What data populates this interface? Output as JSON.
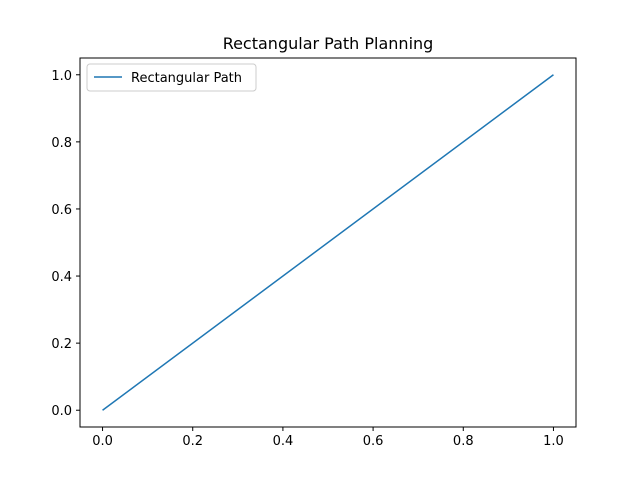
{
  "chart_data": {
    "type": "line",
    "title": "Rectangular Path Planning",
    "xlabel": "",
    "ylabel": "",
    "xlim": [
      -0.05,
      1.05
    ],
    "ylim": [
      -0.05,
      1.05
    ],
    "x_ticks": [
      "0.0",
      "0.2",
      "0.4",
      "0.6",
      "0.8",
      "1.0"
    ],
    "y_ticks": [
      "0.0",
      "0.2",
      "0.4",
      "0.6",
      "0.8",
      "1.0"
    ],
    "grid": false,
    "legend_position": "upper-left",
    "series": [
      {
        "name": "Rectangular Path",
        "color": "#1f77b4",
        "x": [
          0.0,
          1.0
        ],
        "y": [
          0.0,
          1.0
        ]
      }
    ]
  }
}
